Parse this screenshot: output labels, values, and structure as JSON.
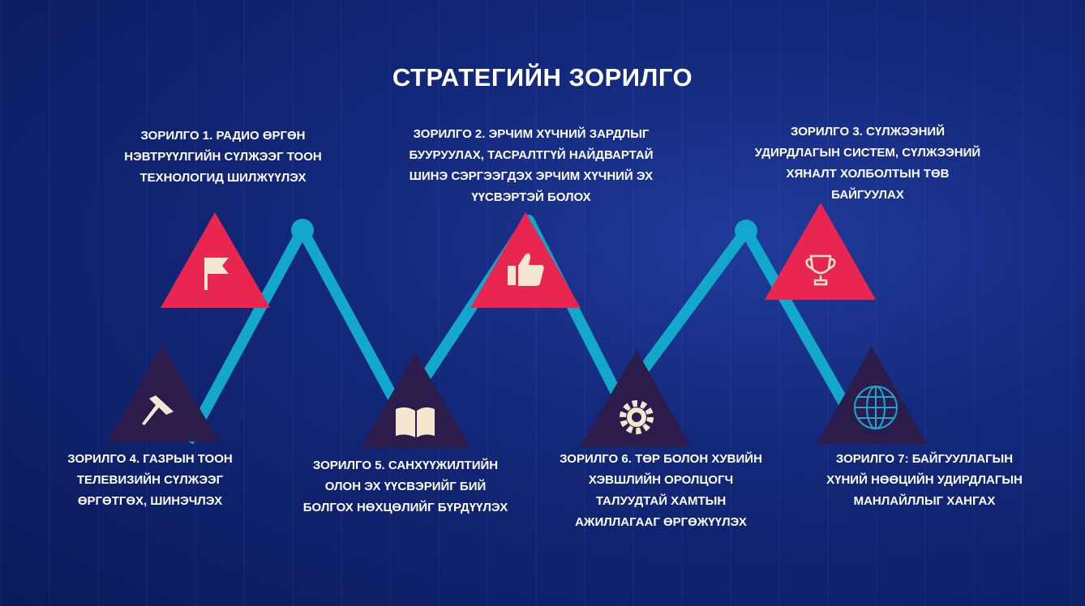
{
  "title": "СТРАТЕГИЙН ЗОРИЛГО",
  "colors": {
    "accent_red": "#e8264f",
    "dark_purple": "#2b1c4c",
    "line": "#13a7cc",
    "background": "#13287a"
  },
  "goals": [
    {
      "text": "ЗОРИЛГО 1. РАДИО ӨРГӨН\nНЭВТРҮҮЛГИЙН СҮЛЖЭЭГ ТООН\nТЕХНОЛОГИД ШИЛЖҮҮЛЭХ",
      "icon": "flag-icon"
    },
    {
      "text": "ЗОРИЛГО 2. ЭРЧИМ ХҮЧНИЙ ЗАРДЛЫГ\nБУУРУУЛАХ, ТАСРАЛТГҮЙ НАЙДВАРТАЙ\nШИНЭ СЭРГЭЭГДЭХ ЭРЧИМ ХҮЧНИЙ ЭХ\nҮҮСВЭРТЭЙ БОЛОХ",
      "icon": "thumbs-up-icon"
    },
    {
      "text": "ЗОРИЛГО 3. СҮЛЖЭЭНИЙ\nУДИРДЛАГЫН СИСТЕМ, СҮЛЖЭЭНИЙ\nХЯНАЛТ ХОЛБОЛТЫН ТӨВ\nБАЙГУУЛАХ",
      "icon": "trophy-icon"
    },
    {
      "text": "ЗОРИЛГО 4. ГАЗРЫН ТООН\nТЕЛЕВИЗИЙН СҮЛЖЭЭГ\nӨРГӨТГӨХ,  ШИНЭЧЛЭХ",
      "icon": "pushpin-icon"
    },
    {
      "text": "ЗОРИЛГО 5. САНХҮҮЖИЛТИЙН\nОЛОН ЭХ ҮҮСВЭРИЙГ БИЙ\nБОЛГОХ НӨХЦӨЛИЙГ БҮРДҮҮЛЭХ",
      "icon": "book-icon"
    },
    {
      "text": "ЗОРИЛГО 6. ТӨР БОЛОН ХУВИЙН\nХЭВШЛИЙН ОРОЛЦОГЧ\nТАЛУУДТАЙ ХАМТЫН\nАЖИЛЛАГААГ   ӨРГӨЖҮҮЛЭХ",
      "icon": "gear-icon"
    },
    {
      "text": "ЗОРИЛГО 7: БАЙГУУЛЛАГЫН\nХҮНИЙ НӨӨЦИЙН УДИРДЛАГЫН\nМАНЛАЙЛЛЫГ ХАНГАХ",
      "icon": "globe-icon"
    }
  ]
}
